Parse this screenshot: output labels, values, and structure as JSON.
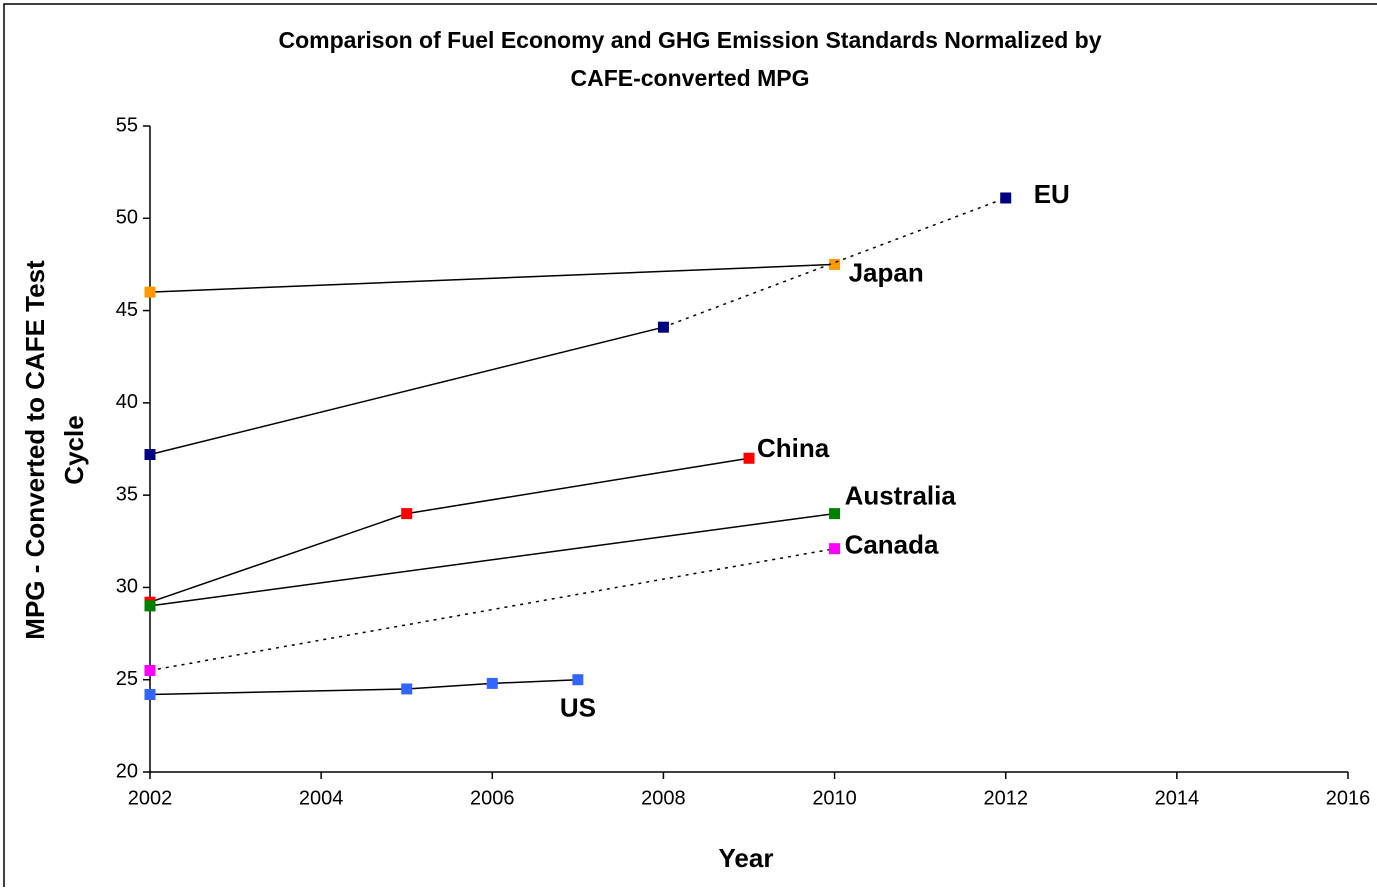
{
  "chart_data": {
    "type": "line",
    "title": [
      "Comparison of Fuel Economy and GHG Emission Standards Normalized by",
      "CAFE-converted MPG"
    ],
    "x_label": "Year",
    "y_label": [
      "MPG - Converted to CAFE Test",
      "Cycle"
    ],
    "xlim": [
      2002,
      2016
    ],
    "xticks": [
      2002,
      2004,
      2006,
      2008,
      2010,
      2012,
      2014,
      2016
    ],
    "ylim": [
      20,
      55
    ],
    "yticks": [
      20,
      25,
      30,
      35,
      40,
      45,
      50,
      55
    ],
    "grid": false,
    "series": [
      {
        "name": "Japan",
        "color": "#ff9900",
        "x": [
          2002,
          2010
        ],
        "values": [
          46.0,
          47.5
        ],
        "segment_styles": [
          "solid"
        ]
      },
      {
        "name": "EU",
        "color": "#000080",
        "x": [
          2002,
          2008,
          2012
        ],
        "values": [
          37.2,
          44.1,
          51.1
        ],
        "segment_styles": [
          "solid",
          "dotted"
        ]
      },
      {
        "name": "China",
        "color": "#ff0000",
        "x": [
          2002,
          2005,
          2009
        ],
        "values": [
          29.2,
          34.0,
          37.0
        ],
        "segment_styles": [
          "solid",
          "solid"
        ]
      },
      {
        "name": "Australia",
        "color": "#008000",
        "x": [
          2002,
          2010
        ],
        "values": [
          29.0,
          34.0
        ],
        "segment_styles": [
          "solid"
        ]
      },
      {
        "name": "Canada",
        "color": "#ff00ff",
        "x": [
          2002,
          2010
        ],
        "values": [
          25.5,
          32.1
        ],
        "segment_styles": [
          "dotted"
        ]
      },
      {
        "name": "US",
        "color": "#3366ff",
        "x": [
          2002,
          2005,
          2006,
          2007
        ],
        "values": [
          24.2,
          24.5,
          24.8,
          25.0
        ],
        "segment_styles": [
          "solid",
          "solid",
          "solid"
        ]
      }
    ]
  }
}
